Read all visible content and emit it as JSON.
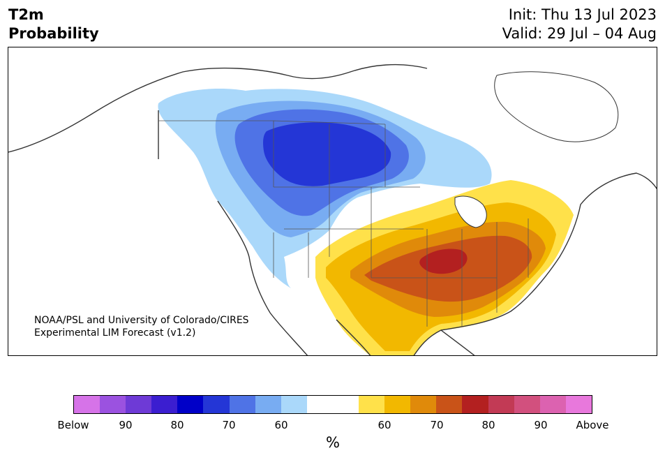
{
  "header": {
    "title_line1": "T2m",
    "title_line2": "Probability",
    "init": "Init: Thu 13 Jul 2023",
    "valid": "Valid: 29 Jul – 04 Aug"
  },
  "credit": {
    "line1": "NOAA/PSL and University of Colorado/CIRES",
    "line2": "Experimental LIM Forecast (v1.2)"
  },
  "colorbar": {
    "colors": [
      "#d673e8",
      "#9b52e0",
      "#6e3ad6",
      "#3b1ed0",
      "#0000c8",
      "#2436d6",
      "#4f73e6",
      "#78acf2",
      "#aad8fa",
      "#ffffff",
      "#ffffff",
      "#ffe14a",
      "#f2b800",
      "#e08a0a",
      "#c95318",
      "#b32020",
      "#c23a55",
      "#d2507e",
      "#dc62b0",
      "#e878dc"
    ],
    "ticks": [
      "Below",
      "90",
      "80",
      "70",
      "60",
      "60",
      "70",
      "80",
      "90",
      "Above"
    ],
    "unit": "%"
  },
  "map": {
    "fills": {
      "below_60": "#aad8fa",
      "below_70": "#78acf2",
      "below_80": "#4f73e6",
      "below_90": "#2436d6",
      "above_60": "#ffe14a",
      "above_70": "#f2b800",
      "above_80": "#e08a0a",
      "above_90": "#c95318",
      "above_max": "#b32020"
    }
  }
}
